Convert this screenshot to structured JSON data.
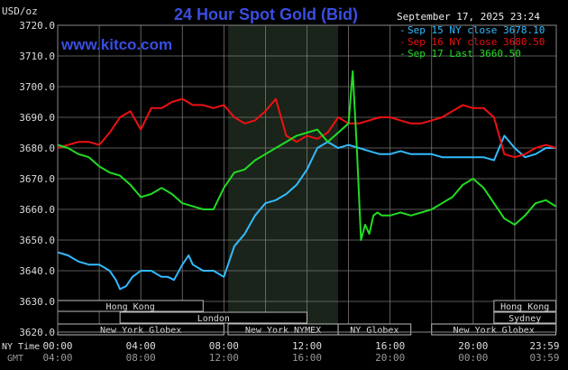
{
  "header": {
    "title": "24 Hour Spot Gold (Bid)",
    "site": "www.kitco.com",
    "unit_label": "USD/oz",
    "datetime": "September 17, 2025 23:24"
  },
  "legend": [
    {
      "label": "Sep 15 NY close 3678.10",
      "color": "#33bbff"
    },
    {
      "label": "Sep 16 NY close 3680.50",
      "color": "#ee1111"
    },
    {
      "label": "Sep 17 Last 3660.50",
      "color": "#22dd22"
    }
  ],
  "axis_footer": {
    "ny_time_label": "NY Time",
    "gmt_label": "GMT",
    "ny_ticks": [
      "00:00",
      "04:00",
      "08:00",
      "12:00",
      "16:00",
      "20:00",
      "23:59"
    ],
    "gmt_ticks": [
      "04:00",
      "08:00",
      "12:00",
      "16:00",
      "20:00",
      "00:00",
      "03:59"
    ]
  },
  "sessions": [
    {
      "name": "Hong Kong",
      "row": 0,
      "start": 0,
      "end": 7
    },
    {
      "name": "Hong Kong",
      "row": 0,
      "start": 21,
      "end": 23.98
    },
    {
      "name": "London",
      "row": 1,
      "start": 3,
      "end": 12
    },
    {
      "name": "Sydney",
      "row": 1,
      "start": 21,
      "end": 23.98
    },
    {
      "name": "New York Globex",
      "row": 2,
      "start": 0,
      "end": 8
    },
    {
      "name": "New York NYMEX",
      "row": 2,
      "start": 8.2,
      "end": 13.5
    },
    {
      "name": "NY Globex",
      "row": 2,
      "start": 13.5,
      "end": 17
    },
    {
      "name": "New York Globex",
      "row": 2,
      "start": 18,
      "end": 23.98
    }
  ],
  "chart_data": {
    "type": "line",
    "title": "24 Hour Spot Gold (Bid)",
    "ylabel": "USD/oz",
    "ylim": [
      3620,
      3720
    ],
    "yticks": [
      "3620.0",
      "3630.0",
      "3640.0",
      "3650.0",
      "3660.0",
      "3670.0",
      "3680.0",
      "3690.0",
      "3700.0",
      "3710.0",
      "3720.0"
    ],
    "xlim": [
      0,
      24
    ],
    "x_unit": "hours (NY time)",
    "shaded_region": [
      8.2,
      13.5
    ],
    "grid": true,
    "legend_position": "top-right",
    "series": [
      {
        "name": "Sep 15 NY close 3678.10",
        "color": "#33bbff",
        "x": [
          0,
          0.5,
          1,
          1.5,
          2,
          2.5,
          2.8,
          3,
          3.3,
          3.6,
          4,
          4.5,
          5,
          5.3,
          5.6,
          6,
          6.3,
          6.5,
          7,
          7.5,
          8,
          8.5,
          9,
          9.5,
          10,
          10.5,
          11,
          11.5,
          12,
          12.5,
          13,
          13.5,
          14,
          14.5,
          15,
          15.5,
          16,
          16.5,
          17,
          17.5,
          18,
          18.5,
          19,
          19.5,
          20,
          20.5,
          21,
          21.5,
          22,
          22.5,
          23,
          23.5,
          23.98
        ],
        "y": [
          3646,
          3645,
          3643,
          3642,
          3642,
          3640,
          3637,
          3634,
          3635,
          3638,
          3640,
          3640,
          3638,
          3638,
          3637,
          3642,
          3645,
          3642,
          3640,
          3640,
          3638,
          3648,
          3652,
          3658,
          3662,
          3663,
          3665,
          3668,
          3673,
          3680,
          3682,
          3680,
          3681,
          3680,
          3679,
          3678,
          3678,
          3679,
          3678,
          3678,
          3678,
          3677,
          3677,
          3677,
          3677,
          3677,
          3676,
          3684,
          3680,
          3677,
          3678,
          3680,
          3680
        ]
      },
      {
        "name": "Sep 16 NY close 3680.50",
        "color": "#ee1111",
        "x": [
          0,
          0.5,
          1,
          1.5,
          2,
          2.5,
          3,
          3.5,
          4,
          4.5,
          5,
          5.5,
          6,
          6.5,
          7,
          7.5,
          8,
          8.5,
          9,
          9.5,
          10,
          10.5,
          11,
          11.5,
          12,
          12.5,
          13,
          13.5,
          14,
          14.5,
          15,
          15.5,
          16,
          16.5,
          17,
          17.5,
          18,
          18.5,
          19,
          19.5,
          20,
          20.5,
          21,
          21.5,
          22,
          22.5,
          23,
          23.5,
          23.98
        ],
        "y": [
          3680,
          3681,
          3682,
          3682,
          3681,
          3685,
          3690,
          3692,
          3686,
          3693,
          3693,
          3695,
          3696,
          3694,
          3694,
          3693,
          3694,
          3690,
          3688,
          3689,
          3692,
          3696,
          3684,
          3682,
          3684,
          3683,
          3685,
          3690,
          3688,
          3688,
          3689,
          3690,
          3690,
          3689,
          3688,
          3688,
          3689,
          3690,
          3692,
          3694,
          3693,
          3693,
          3690,
          3678,
          3677,
          3678,
          3680,
          3681,
          3680
        ]
      },
      {
        "name": "Sep 17 Last 3660.50",
        "color": "#22dd22",
        "x": [
          0,
          0.5,
          1,
          1.5,
          2,
          2.5,
          3,
          3.5,
          4,
          4.5,
          5,
          5.5,
          6,
          6.5,
          7,
          7.5,
          8,
          8.5,
          9,
          9.5,
          10,
          10.5,
          11,
          11.5,
          12,
          12.5,
          13,
          13.5,
          14,
          14.2,
          14.4,
          14.6,
          14.8,
          15,
          15.2,
          15.4,
          15.6,
          16,
          16.5,
          17,
          17.5,
          18,
          18.5,
          19,
          19.5,
          20,
          20.5,
          21,
          21.5,
          22,
          22.5,
          23,
          23.5,
          23.98
        ],
        "y": [
          3681,
          3680,
          3678,
          3677,
          3674,
          3672,
          3671,
          3668,
          3664,
          3665,
          3667,
          3665,
          3662,
          3661,
          3660,
          3660,
          3667,
          3672,
          3673,
          3676,
          3678,
          3680,
          3682,
          3684,
          3685,
          3686,
          3682,
          3685,
          3688,
          3705,
          3680,
          3650,
          3655,
          3652,
          3658,
          3659,
          3658,
          3658,
          3659,
          3658,
          3659,
          3660,
          3662,
          3664,
          3668,
          3670,
          3667,
          3662,
          3657,
          3655,
          3658,
          3662,
          3663,
          3661
        ]
      }
    ]
  }
}
